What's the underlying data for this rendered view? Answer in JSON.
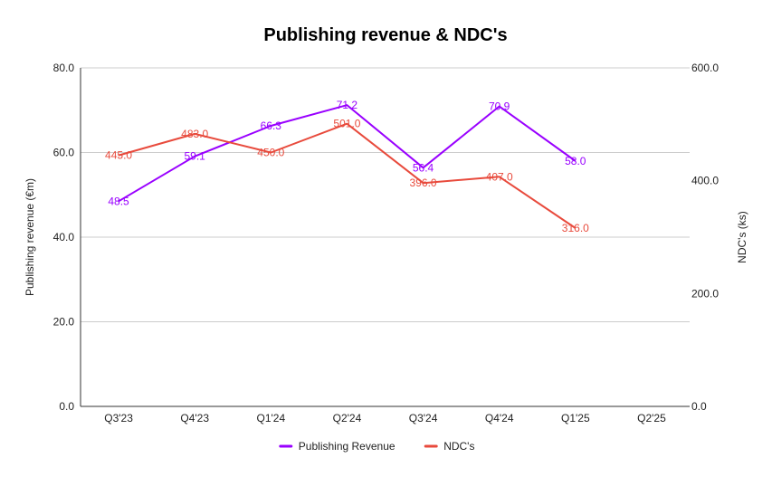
{
  "chart_data": {
    "type": "line",
    "title": "Publishing revenue & NDC's",
    "categories": [
      "Q3'23",
      "Q4'23",
      "Q1'24",
      "Q2'24",
      "Q3'24",
      "Q4'24",
      "Q1'25",
      "Q2'25"
    ],
    "y_left": {
      "label": "Publishing revenue (€m)",
      "range": [
        0,
        80
      ],
      "ticks": [
        0,
        20,
        40,
        60,
        80
      ],
      "tick_labels": [
        "0.0",
        "20.0",
        "40.0",
        "60.0",
        "80.0"
      ]
    },
    "y_right": {
      "label": "NDC's (ks)",
      "range": [
        0,
        600
      ],
      "ticks": [
        0,
        200,
        400,
        600
      ],
      "tick_labels": [
        "0.0",
        "200.0",
        "400.0",
        "600.0"
      ]
    },
    "grid": true,
    "legend_position": "bottom",
    "series": [
      {
        "name": "Publishing Revenue",
        "axis": "left",
        "color": "#9900ff",
        "values": [
          48.5,
          59.1,
          66.3,
          71.2,
          56.4,
          70.9,
          58.0,
          null
        ],
        "labels": [
          "48.5",
          "59.1",
          "66.3",
          "71.2",
          "56.4",
          "70.9",
          "58.0",
          ""
        ]
      },
      {
        "name": "NDC's",
        "axis": "right",
        "color": "#e84a3c",
        "values": [
          445.0,
          483.0,
          450.0,
          501.0,
          396.0,
          407.0,
          316.0,
          null
        ],
        "labels": [
          "445.0",
          "483.0",
          "450.0",
          "501.0",
          "396.0",
          "407.0",
          "316.0",
          ""
        ]
      }
    ]
  }
}
